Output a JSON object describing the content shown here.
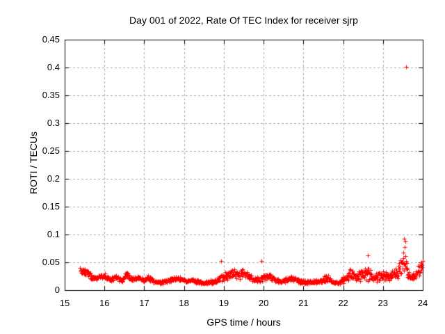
{
  "colors": {
    "marker": "#ff0000",
    "grid": "#a8a8a8",
    "border": "#000000",
    "text": "#000000",
    "background": "#ffffff"
  },
  "chart_data": {
    "type": "scatter",
    "title": "Day 001 of 2022, Rate Of TEC Index for receiver sjrp",
    "xlabel": "GPS time / hours",
    "ylabel": "ROTI / TECUs",
    "xlim": [
      15,
      24
    ],
    "ylim": [
      0,
      0.45
    ],
    "xticks": [
      15,
      16,
      17,
      18,
      19,
      20,
      21,
      22,
      23,
      24
    ],
    "xtick_labels": [
      "15",
      "16",
      "17",
      "18",
      "19",
      "20",
      "21",
      "22",
      "23",
      "24"
    ],
    "yticks": [
      0,
      0.05,
      0.1,
      0.15,
      0.2,
      0.25,
      0.3,
      0.35,
      0.4,
      0.45
    ],
    "ytick_labels": [
      "0",
      "0.05",
      "0.1",
      "0.15",
      "0.2",
      "0.25",
      "0.3",
      "0.35",
      "0.4",
      "0.45"
    ],
    "grid": true,
    "legend": "none",
    "marker": "plus",
    "marker_size_px": 7,
    "seed": 20220101,
    "series": [
      {
        "name": "ROTI",
        "t_start": 15.39,
        "t_end": 24.0,
        "sampling_hours": 0.008333,
        "envelope_keyframes_hour_mean_spread": [
          [
            15.39,
            0.034,
            0.007
          ],
          [
            15.55,
            0.032,
            0.009
          ],
          [
            15.7,
            0.023,
            0.006
          ],
          [
            15.85,
            0.022,
            0.005
          ],
          [
            16.0,
            0.026,
            0.006
          ],
          [
            16.15,
            0.019,
            0.005
          ],
          [
            16.3,
            0.024,
            0.006
          ],
          [
            16.45,
            0.017,
            0.005
          ],
          [
            16.55,
            0.028,
            0.008
          ],
          [
            16.7,
            0.019,
            0.005
          ],
          [
            16.85,
            0.022,
            0.005
          ],
          [
            17.0,
            0.018,
            0.005
          ],
          [
            17.1,
            0.022,
            0.005
          ],
          [
            17.25,
            0.016,
            0.004
          ],
          [
            17.4,
            0.014,
            0.004
          ],
          [
            17.55,
            0.016,
            0.004
          ],
          [
            17.7,
            0.019,
            0.005
          ],
          [
            17.9,
            0.021,
            0.005
          ],
          [
            18.05,
            0.016,
            0.004
          ],
          [
            18.2,
            0.018,
            0.005
          ],
          [
            18.35,
            0.015,
            0.004
          ],
          [
            18.5,
            0.013,
            0.004
          ],
          [
            18.65,
            0.014,
            0.004
          ],
          [
            18.8,
            0.017,
            0.005
          ],
          [
            18.95,
            0.024,
            0.008
          ],
          [
            19.1,
            0.027,
            0.009
          ],
          [
            19.25,
            0.031,
            0.01
          ],
          [
            19.4,
            0.026,
            0.01
          ],
          [
            19.5,
            0.031,
            0.01
          ],
          [
            19.6,
            0.026,
            0.008
          ],
          [
            19.75,
            0.021,
            0.006
          ],
          [
            19.9,
            0.018,
            0.006
          ],
          [
            20.0,
            0.023,
            0.007
          ],
          [
            20.15,
            0.026,
            0.007
          ],
          [
            20.3,
            0.019,
            0.006
          ],
          [
            20.45,
            0.014,
            0.004
          ],
          [
            20.6,
            0.02,
            0.006
          ],
          [
            20.75,
            0.022,
            0.006
          ],
          [
            20.9,
            0.016,
            0.005
          ],
          [
            21.1,
            0.014,
            0.004
          ],
          [
            21.3,
            0.015,
            0.004
          ],
          [
            21.45,
            0.016,
            0.005
          ],
          [
            21.6,
            0.022,
            0.008
          ],
          [
            21.75,
            0.014,
            0.004
          ],
          [
            21.9,
            0.014,
            0.004
          ],
          [
            22.05,
            0.021,
            0.009
          ],
          [
            22.2,
            0.028,
            0.012
          ],
          [
            22.35,
            0.024,
            0.011
          ],
          [
            22.5,
            0.027,
            0.013
          ],
          [
            22.62,
            0.032,
            0.016
          ],
          [
            22.75,
            0.021,
            0.009
          ],
          [
            22.9,
            0.026,
            0.011
          ],
          [
            23.0,
            0.03,
            0.013
          ],
          [
            23.1,
            0.023,
            0.009
          ],
          [
            23.2,
            0.026,
            0.01
          ],
          [
            23.35,
            0.032,
            0.013
          ],
          [
            23.48,
            0.05,
            0.028
          ],
          [
            23.55,
            0.055,
            0.03
          ],
          [
            23.62,
            0.03,
            0.015
          ],
          [
            23.7,
            0.022,
            0.008
          ],
          [
            23.8,
            0.026,
            0.009
          ],
          [
            23.9,
            0.036,
            0.012
          ],
          [
            24.0,
            0.047,
            0.012
          ]
        ],
        "notable_points": [
          [
            18.93,
            0.053
          ],
          [
            19.94,
            0.053
          ],
          [
            22.62,
            0.062
          ],
          [
            23.53,
            0.093
          ],
          [
            23.56,
            0.088
          ],
          [
            23.58,
            0.401
          ]
        ]
      }
    ]
  }
}
